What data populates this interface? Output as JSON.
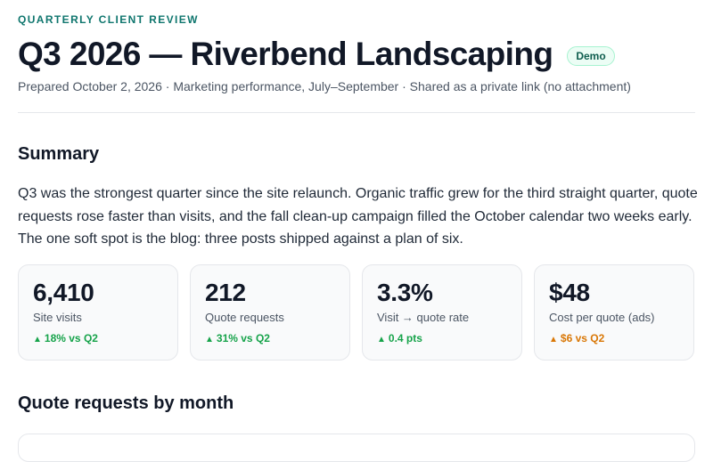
{
  "report": {
    "eyebrow": "QUARTERLY CLIENT REVIEW",
    "title": "Q3 2026 — Riverbend Landscaping",
    "badge": "Demo",
    "meta": "Prepared October 2, 2026 · Marketing performance, July–September · Shared as a private link (no attachment)"
  },
  "summary": {
    "heading": "Summary",
    "text": "Q3 was the strongest quarter since the site relaunch. Organic traffic grew for the third straight quarter, quote requests rose faster than visits, and the fall clean-up campaign filled the October calendar two weeks early. The one soft spot is the blog: three posts shipped against a plan of six."
  },
  "kpis": [
    {
      "value": "6,410",
      "label": "Site visits",
      "delta": "18% vs Q2",
      "trend": "up",
      "color": "#16a34a"
    },
    {
      "value": "212",
      "label": "Quote requests",
      "delta": "31% vs Q2",
      "trend": "up",
      "color": "#16a34a"
    },
    {
      "value": "3.3%",
      "label": "Visit → quote rate",
      "delta": "0.4 pts",
      "trend": "up",
      "color": "#16a34a"
    },
    {
      "value": "$48",
      "label": "Cost per quote (ads)",
      "delta": "$6 vs Q2",
      "trend": "up",
      "color": "#d97706"
    }
  ],
  "monthly": {
    "heading": "Quote requests by month"
  },
  "icons": {
    "trend_up": "▲"
  }
}
